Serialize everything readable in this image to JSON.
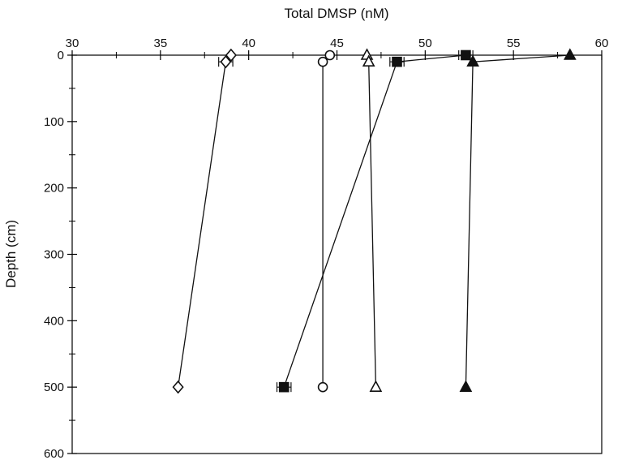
{
  "chart_data": {
    "type": "scatter",
    "title": "",
    "xlabel": "Total DMSP (nM)",
    "ylabel": "Depth (cm)",
    "xlim": [
      30,
      60
    ],
    "ylim": [
      0,
      600
    ],
    "y_inverted": true,
    "x_axis_position": "top",
    "x_ticks": [
      30,
      35,
      40,
      45,
      50,
      55,
      60
    ],
    "y_ticks": [
      0,
      100,
      200,
      300,
      400,
      500,
      600
    ],
    "grid": false,
    "legend": "none",
    "series": [
      {
        "marker": "open-diamond",
        "points": [
          {
            "x": 39.0,
            "y": 0
          },
          {
            "x": 38.7,
            "y": 10
          },
          {
            "x": 36.0,
            "y": 500
          }
        ],
        "errors": [
          0.0,
          0.4,
          0.0
        ]
      },
      {
        "marker": "open-circle",
        "points": [
          {
            "x": 44.6,
            "y": 0
          },
          {
            "x": 44.2,
            "y": 10
          },
          {
            "x": 44.2,
            "y": 500
          }
        ],
        "errors": [
          0.0,
          0.0,
          0.0
        ]
      },
      {
        "marker": "open-triangle",
        "points": [
          {
            "x": 46.7,
            "y": 0
          },
          {
            "x": 46.8,
            "y": 10
          },
          {
            "x": 47.2,
            "y": 500
          }
        ],
        "errors": [
          0.0,
          0.0,
          0.0
        ]
      },
      {
        "marker": "filled-square",
        "points": [
          {
            "x": 52.3,
            "y": 0
          },
          {
            "x": 48.4,
            "y": 10
          },
          {
            "x": 42.0,
            "y": 500
          }
        ],
        "errors": [
          0.4,
          0.4,
          0.4
        ]
      },
      {
        "marker": "filled-triangle",
        "points": [
          {
            "x": 58.2,
            "y": 0
          },
          {
            "x": 52.7,
            "y": 10
          },
          {
            "x": 52.3,
            "y": 500
          }
        ],
        "errors": [
          0.0,
          0.0,
          0.0
        ]
      }
    ]
  }
}
